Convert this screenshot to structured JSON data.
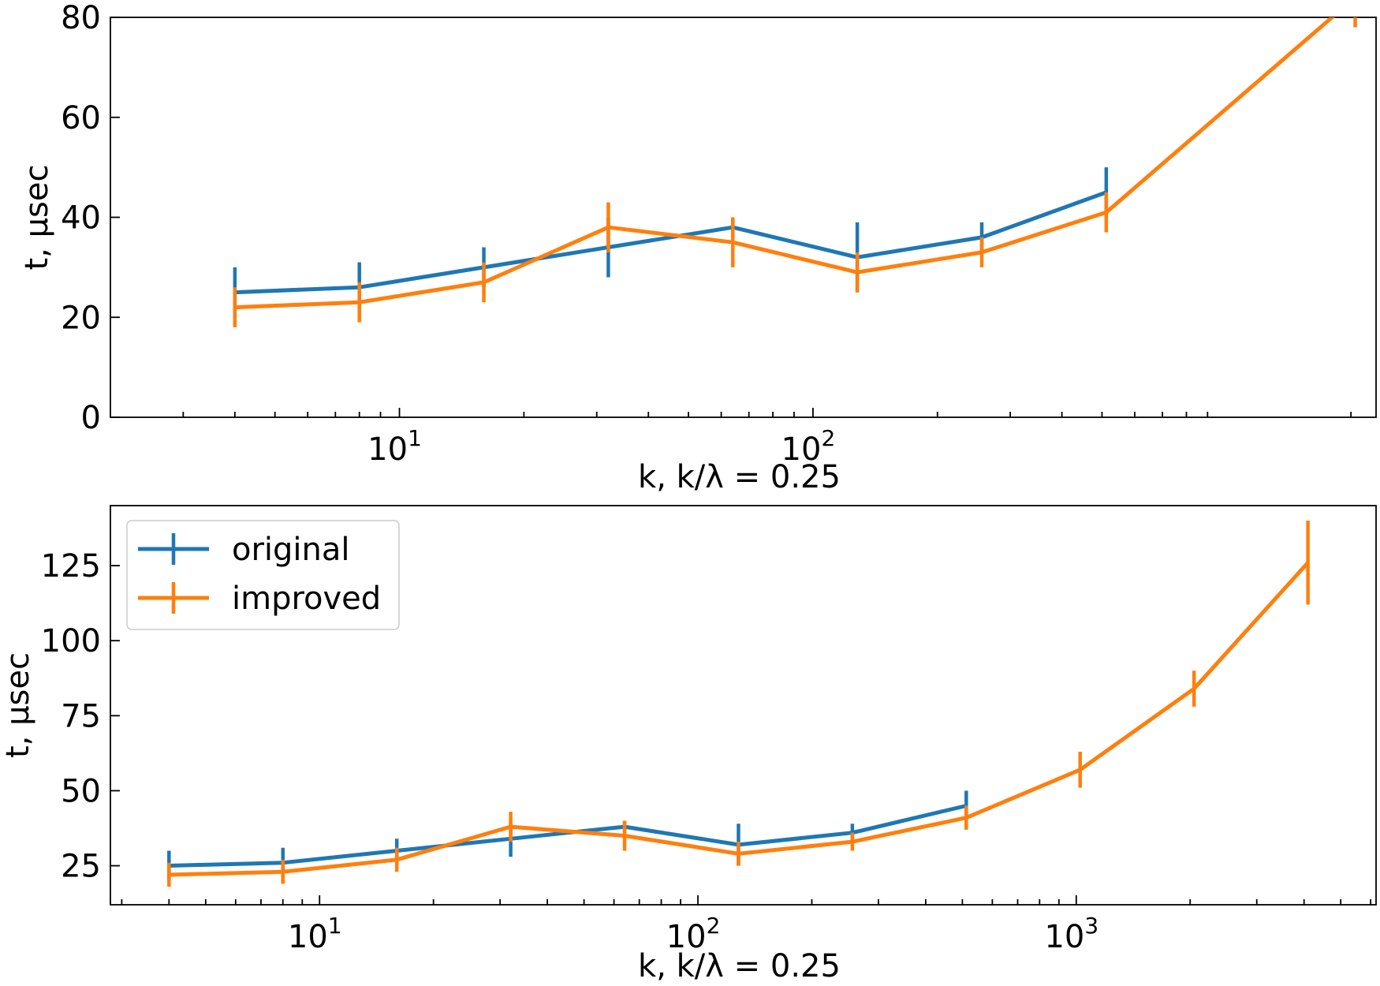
{
  "colors": {
    "original": "#1f77b4",
    "improved": "#ff7f0e"
  },
  "chart_data": [
    {
      "type": "line",
      "xscale": "log",
      "xlim": [
        2,
        2300
      ],
      "ylim": [
        0,
        80
      ],
      "yticks": [
        0,
        20,
        40,
        60,
        80
      ],
      "xticks": [
        {
          "value": 10,
          "base": "10",
          "exp": "1"
        },
        {
          "value": 100,
          "base": "10",
          "exp": "2"
        }
      ],
      "xlabel": "k, k/λ = 0.25",
      "ylabel": "t, μsec",
      "title": "",
      "series": [
        {
          "key": "original",
          "x": [
            4,
            8,
            16,
            32,
            64,
            128,
            256,
            512
          ],
          "y": [
            25,
            26,
            30,
            34,
            38,
            32,
            36,
            45
          ],
          "err": [
            5,
            5,
            4,
            6,
            2,
            7,
            3,
            5
          ]
        },
        {
          "key": "improved",
          "x": [
            4,
            8,
            16,
            32,
            64,
            128,
            256,
            512,
            2048
          ],
          "y": [
            22,
            23,
            27,
            38,
            35,
            29,
            33,
            41,
            84
          ],
          "err": [
            4,
            4,
            4,
            5,
            5,
            4,
            3,
            4,
            6
          ]
        }
      ]
    },
    {
      "type": "line",
      "xscale": "log",
      "xlim": [
        2.8,
        6200
      ],
      "ylim": [
        12,
        145
      ],
      "yticks": [
        25,
        50,
        75,
        100,
        125
      ],
      "xticks": [
        {
          "value": 10,
          "base": "10",
          "exp": "1"
        },
        {
          "value": 100,
          "base": "10",
          "exp": "2"
        },
        {
          "value": 1000,
          "base": "10",
          "exp": "3"
        }
      ],
      "xlabel": "k, k/λ = 0.25",
      "ylabel": "t, μsec",
      "title": "",
      "legend": {
        "position": "upper-left",
        "items": [
          {
            "key": "original",
            "label": "original"
          },
          {
            "key": "improved",
            "label": "improved"
          }
        ]
      },
      "series": [
        {
          "key": "original",
          "x": [
            4,
            8,
            16,
            32,
            64,
            128,
            256,
            512
          ],
          "y": [
            25,
            26,
            30,
            34,
            38,
            32,
            36,
            45
          ],
          "err": [
            5,
            5,
            4,
            6,
            2,
            7,
            3,
            5
          ]
        },
        {
          "key": "improved",
          "x": [
            4,
            8,
            16,
            32,
            64,
            128,
            256,
            512,
            1024,
            2048,
            4096
          ],
          "y": [
            22,
            23,
            27,
            38,
            35,
            29,
            33,
            41,
            57,
            84,
            126
          ],
          "err": [
            4,
            4,
            4,
            5,
            5,
            4,
            3,
            4,
            6,
            6,
            14
          ]
        }
      ]
    }
  ]
}
